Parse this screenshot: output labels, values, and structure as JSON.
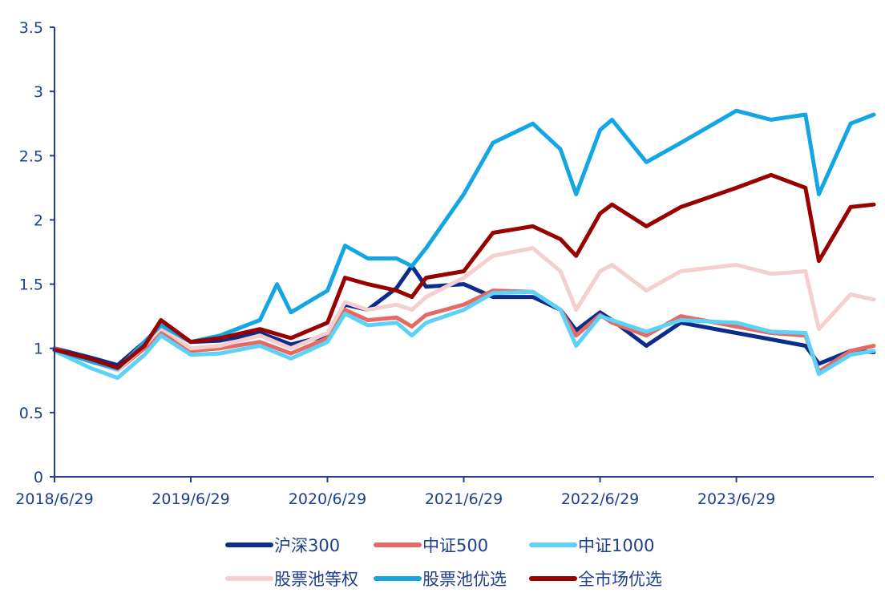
{
  "chart_data": {
    "type": "line",
    "title": "",
    "xlabel": "",
    "ylabel": "",
    "ylim": [
      0,
      3.5
    ],
    "yticks": [
      "0",
      "0.5",
      "1",
      "1.5",
      "2",
      "2.5",
      "3",
      "3.5"
    ],
    "x_range": [
      "2018/6/29",
      "2024/7/1"
    ],
    "xticks": [
      "2018/6/29",
      "2019/6/29",
      "2020/6/29",
      "2021/6/29",
      "2022/6/29",
      "2023/6/29"
    ],
    "grid": false,
    "legend_position": "bottom",
    "series": [
      {
        "name": "沪深300",
        "color": "#0a2d8c",
        "x": [
          "2018/6/29",
          "2018/10/1",
          "2018/12/15",
          "2019/2/25",
          "2019/4/10",
          "2019/6/29",
          "2019/9/15",
          "2019/12/31",
          "2020/3/23",
          "2020/6/29",
          "2020/8/15",
          "2020/10/15",
          "2020/12/31",
          "2021/2/10",
          "2021/3/20",
          "2021/6/29",
          "2021/9/15",
          "2021/12/31",
          "2022/3/15",
          "2022/4/26",
          "2022/6/29",
          "2022/7/31",
          "2022/10/31",
          "2023/1/31",
          "2023/6/29",
          "2023/9/30",
          "2023/12/31",
          "2024/2/5",
          "2024/4/30",
          "2024/7/1"
        ],
        "values": [
          1.0,
          0.93,
          0.87,
          1.05,
          1.18,
          1.05,
          1.06,
          1.12,
          1.03,
          1.1,
          1.34,
          1.3,
          1.47,
          1.64,
          1.48,
          1.5,
          1.4,
          1.4,
          1.3,
          1.14,
          1.28,
          1.22,
          1.02,
          1.2,
          1.12,
          1.07,
          1.02,
          0.88,
          0.98,
          0.97
        ]
      },
      {
        "name": "中证500",
        "color": "#e66a63",
        "x": [
          "2018/6/29",
          "2018/10/1",
          "2018/12/15",
          "2019/2/25",
          "2019/4/10",
          "2019/6/29",
          "2019/9/15",
          "2019/12/31",
          "2020/3/23",
          "2020/6/29",
          "2020/8/15",
          "2020/10/15",
          "2020/12/31",
          "2021/2/10",
          "2021/3/20",
          "2021/6/29",
          "2021/9/15",
          "2021/12/31",
          "2022/3/15",
          "2022/4/26",
          "2022/6/29",
          "2022/7/31",
          "2022/10/31",
          "2023/1/31",
          "2023/6/29",
          "2023/9/30",
          "2023/12/31",
          "2024/2/5",
          "2024/4/30",
          "2024/7/1"
        ],
        "values": [
          1.0,
          0.9,
          0.83,
          1.0,
          1.12,
          0.98,
          1.0,
          1.05,
          0.96,
          1.08,
          1.3,
          1.22,
          1.24,
          1.17,
          1.26,
          1.34,
          1.45,
          1.44,
          1.3,
          1.1,
          1.26,
          1.2,
          1.1,
          1.25,
          1.17,
          1.12,
          1.1,
          0.82,
          0.98,
          1.02
        ]
      },
      {
        "name": "中证1000",
        "color": "#5cd3f6",
        "x": [
          "2018/6/29",
          "2018/10/1",
          "2018/12/15",
          "2019/2/25",
          "2019/4/10",
          "2019/6/29",
          "2019/9/15",
          "2019/12/31",
          "2020/3/23",
          "2020/6/29",
          "2020/8/15",
          "2020/10/15",
          "2020/12/31",
          "2021/2/10",
          "2021/3/20",
          "2021/6/29",
          "2021/9/15",
          "2021/12/31",
          "2022/3/15",
          "2022/4/26",
          "2022/6/29",
          "2022/7/31",
          "2022/10/31",
          "2023/1/31",
          "2023/6/29",
          "2023/9/30",
          "2023/12/31",
          "2024/2/5",
          "2024/4/30",
          "2024/7/1"
        ],
        "values": [
          0.98,
          0.85,
          0.77,
          0.95,
          1.1,
          0.95,
          0.96,
          1.02,
          0.92,
          1.05,
          1.27,
          1.18,
          1.2,
          1.1,
          1.2,
          1.3,
          1.43,
          1.44,
          1.3,
          1.02,
          1.25,
          1.22,
          1.13,
          1.22,
          1.2,
          1.13,
          1.12,
          0.8,
          0.95,
          0.98
        ]
      },
      {
        "name": "股票池等权",
        "color": "#f5cfcf",
        "x": [
          "2018/6/29",
          "2018/10/1",
          "2018/12/15",
          "2019/2/25",
          "2019/4/10",
          "2019/6/29",
          "2019/9/15",
          "2019/12/31",
          "2020/3/23",
          "2020/6/29",
          "2020/8/15",
          "2020/10/15",
          "2020/12/31",
          "2021/2/10",
          "2021/3/20",
          "2021/6/29",
          "2021/9/15",
          "2021/12/31",
          "2022/3/15",
          "2022/4/26",
          "2022/6/29",
          "2022/7/31",
          "2022/10/31",
          "2023/1/31",
          "2023/6/29",
          "2023/9/30",
          "2023/12/31",
          "2024/2/5",
          "2024/4/30",
          "2024/7/1"
        ],
        "values": [
          0.99,
          0.9,
          0.83,
          1.02,
          1.16,
          1.0,
          1.02,
          1.1,
          1.0,
          1.12,
          1.36,
          1.3,
          1.34,
          1.3,
          1.4,
          1.55,
          1.72,
          1.78,
          1.6,
          1.3,
          1.6,
          1.65,
          1.45,
          1.6,
          1.65,
          1.58,
          1.6,
          1.15,
          1.42,
          1.38
        ]
      },
      {
        "name": "股票池优选",
        "color": "#13a6e3",
        "x": [
          "2018/6/29",
          "2018/10/1",
          "2018/12/15",
          "2019/2/25",
          "2019/4/10",
          "2019/6/29",
          "2019/9/15",
          "2019/12/31",
          "2020/2/15",
          "2020/3/23",
          "2020/6/29",
          "2020/8/15",
          "2020/10/15",
          "2020/12/31",
          "2021/2/10",
          "2021/3/20",
          "2021/6/29",
          "2021/9/15",
          "2021/12/31",
          "2022/3/15",
          "2022/4/26",
          "2022/6/29",
          "2022/7/31",
          "2022/10/31",
          "2023/1/31",
          "2023/6/29",
          "2023/9/30",
          "2023/12/31",
          "2024/2/5",
          "2024/4/30",
          "2024/7/1"
        ],
        "values": [
          0.99,
          0.9,
          0.84,
          1.05,
          1.18,
          1.05,
          1.1,
          1.22,
          1.5,
          1.28,
          1.45,
          1.8,
          1.7,
          1.7,
          1.64,
          1.78,
          2.2,
          2.6,
          2.75,
          2.55,
          2.2,
          2.7,
          2.78,
          2.45,
          2.6,
          2.85,
          2.78,
          2.82,
          2.2,
          2.75,
          2.82
        ]
      },
      {
        "name": "全市场优选",
        "color": "#990000",
        "x": [
          "2018/6/29",
          "2018/10/1",
          "2018/12/15",
          "2019/2/25",
          "2019/4/10",
          "2019/6/29",
          "2019/9/15",
          "2019/12/31",
          "2020/3/23",
          "2020/6/29",
          "2020/8/15",
          "2020/10/15",
          "2020/12/31",
          "2021/2/10",
          "2021/3/20",
          "2021/6/29",
          "2021/9/15",
          "2021/12/31",
          "2022/3/15",
          "2022/4/26",
          "2022/6/29",
          "2022/7/31",
          "2022/10/31",
          "2023/1/31",
          "2023/6/29",
          "2023/9/30",
          "2023/12/31",
          "2024/2/5",
          "2024/4/30",
          "2024/7/1"
        ],
        "values": [
          0.99,
          0.92,
          0.85,
          1.02,
          1.22,
          1.05,
          1.08,
          1.15,
          1.08,
          1.2,
          1.55,
          1.5,
          1.45,
          1.4,
          1.55,
          1.6,
          1.9,
          1.95,
          1.85,
          1.72,
          2.05,
          2.12,
          1.95,
          2.1,
          2.25,
          2.35,
          2.25,
          1.68,
          2.1,
          2.12
        ]
      }
    ]
  }
}
